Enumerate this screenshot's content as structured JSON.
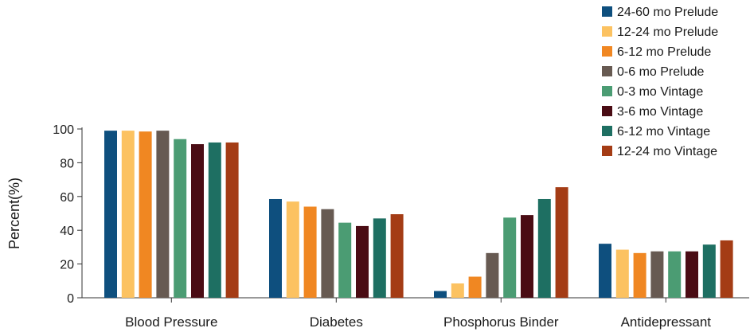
{
  "chart_data": {
    "type": "bar",
    "ylabel": "Percent(%)",
    "xlabel": "",
    "ylim": [
      0,
      100
    ],
    "yticks": [
      0,
      20,
      40,
      60,
      80,
      100
    ],
    "grid": false,
    "legend_position": "top-right",
    "categories": [
      "Blood Pressure",
      "Diabetes",
      "Phosphorus Binder",
      "Antidepressant"
    ],
    "series": [
      {
        "name": "24-60 mo Prelude",
        "color": "#0e4f7e",
        "values": [
          99,
          58.5,
          4,
          32
        ]
      },
      {
        "name": "12-24 mo Prelude",
        "color": "#fcc261",
        "values": [
          99,
          57,
          8.5,
          28.5
        ]
      },
      {
        "name": "6-12 mo Prelude",
        "color": "#f08722",
        "values": [
          98.5,
          54,
          12.5,
          26.5
        ]
      },
      {
        "name": "0-6 mo Prelude",
        "color": "#675a52",
        "values": [
          99,
          52.5,
          26.5,
          27.5
        ]
      },
      {
        "name": "0-3 mo Vintage",
        "color": "#4b9c73",
        "values": [
          94,
          44.5,
          47.5,
          27.5
        ]
      },
      {
        "name": "3-6 mo Vintage",
        "color": "#4a0c14",
        "values": [
          91,
          42.5,
          49,
          27.5
        ]
      },
      {
        "name": "6-12 mo Vintage",
        "color": "#1e6f62",
        "values": [
          92,
          47,
          58.5,
          31.5
        ]
      },
      {
        "name": "12-24 mo Vintage",
        "color": "#a43c15",
        "values": [
          92,
          49.5,
          65.5,
          34
        ]
      }
    ]
  }
}
